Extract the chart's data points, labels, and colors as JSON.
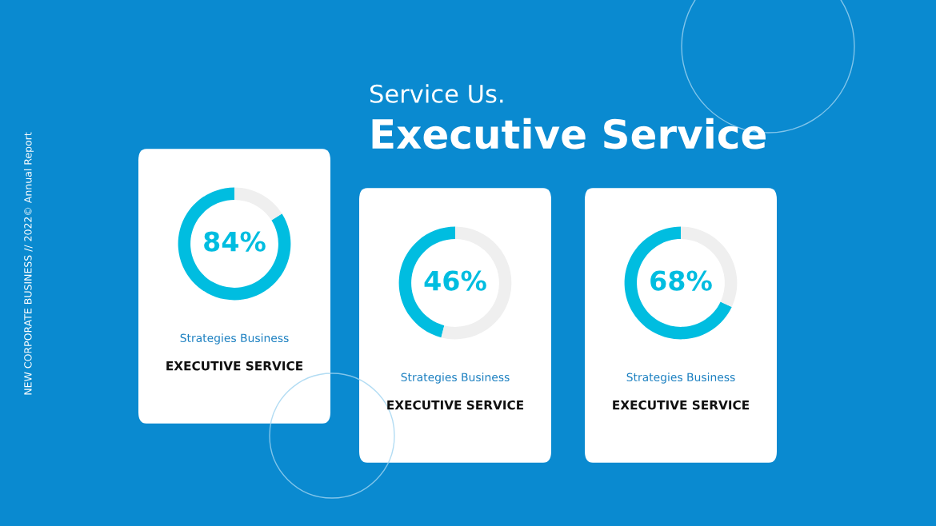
{
  "chart_data": [
    {
      "type": "other",
      "title": "Service Us.",
      "subtitle": "Executive Service",
      "annotations": [
        "NEW CORPORATE BUSINESS // 2022© Annual Report"
      ]
    },
    {
      "type": "donut",
      "subtitle": "Strategies Business",
      "title": "EXECUTIVE SERVICE",
      "categories": [
        null,
        null
      ],
      "values": [
        84,
        16
      ],
      "colors": [
        "#00bde0",
        "#efefef"
      ],
      "value_labels": [
        "84%",
        null
      ]
    },
    {
      "type": "donut",
      "subtitle": "Strategies Business",
      "title": "EXECUTIVE SERVICE",
      "categories": [
        null,
        null
      ],
      "values": [
        46,
        54
      ],
      "colors": [
        "#00bde0",
        "#efefef"
      ],
      "value_labels": [
        "46%",
        null
      ]
    },
    {
      "type": "donut",
      "subtitle": "Strategies Business",
      "title": "EXECUTIVE SERVICE",
      "categories": [
        null,
        null
      ],
      "values": [
        68,
        32
      ],
      "colors": [
        "#00bde0",
        "#efefef"
      ],
      "value_labels": [
        "68%",
        null
      ]
    }
  ]
}
